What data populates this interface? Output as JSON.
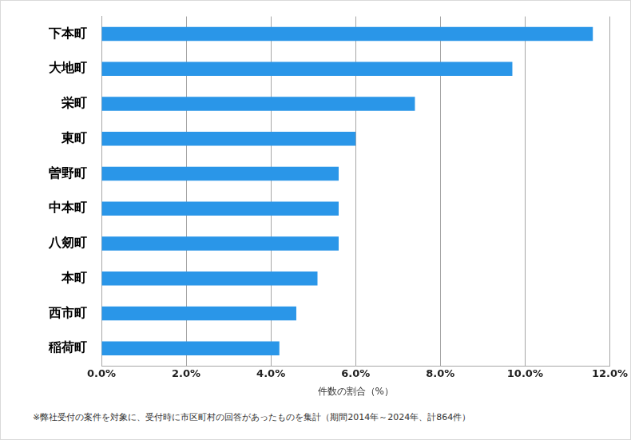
{
  "chart_data": {
    "type": "bar",
    "orientation": "horizontal",
    "categories": [
      "下本町",
      "大地町",
      "栄町",
      "東町",
      "曽野町",
      "中本町",
      "八剱町",
      "本町",
      "西市町",
      "稲荷町"
    ],
    "values": [
      11.6,
      9.7,
      7.4,
      6.0,
      5.6,
      5.6,
      5.6,
      5.1,
      4.6,
      4.2
    ],
    "color": "#2a96e8",
    "x_label": "件数の割合（%）",
    "xlim": [
      0,
      12
    ],
    "xticks": [
      {
        "value": 0,
        "label": "0.0%"
      },
      {
        "value": 2,
        "label": "2.0%"
      },
      {
        "value": 4,
        "label": "4.0%"
      },
      {
        "value": 6,
        "label": "6.0%"
      },
      {
        "value": 8,
        "label": "8.0%"
      },
      {
        "value": 10,
        "label": "10.0%"
      },
      {
        "value": 12,
        "label": "12.0%"
      }
    ],
    "grid": true,
    "annotations": [
      "※弊社受付の案件を対象に、受付時に市区町村の回答があったものを集計（期間2014年～2024年、計864件）"
    ]
  }
}
